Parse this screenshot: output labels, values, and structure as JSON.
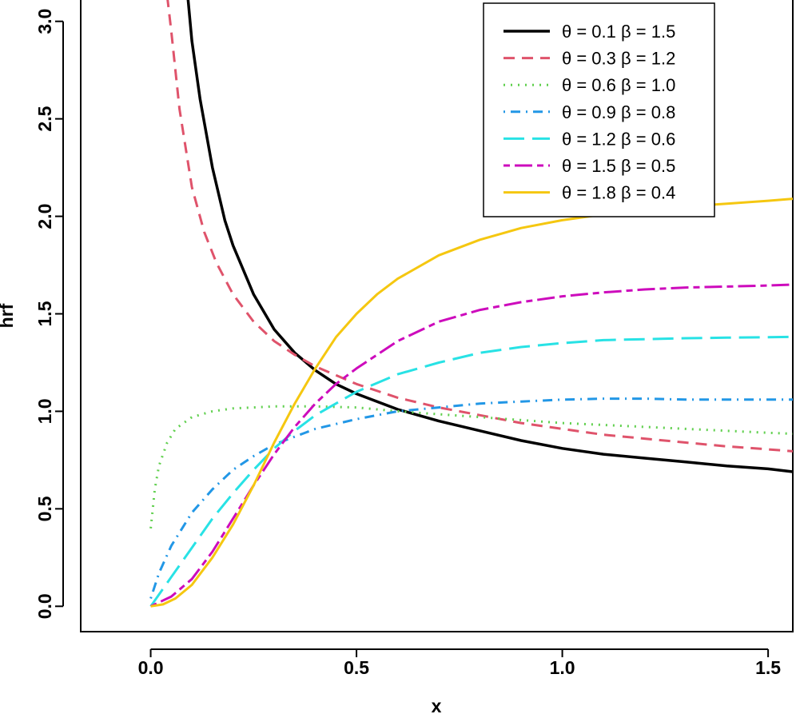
{
  "chart_data": {
    "type": "line",
    "title": "",
    "xlabel": "x",
    "ylabel": "hrf",
    "xlim": [
      -0.17,
      1.56
    ],
    "ylim": [
      -0.13,
      3.13
    ],
    "xticks": [
      0.0,
      0.5,
      1.0,
      1.5
    ],
    "yticks": [
      0.0,
      0.5,
      1.0,
      1.5,
      2.0,
      2.5,
      3.0
    ],
    "xtick_labels": [
      "0.0",
      "0.5",
      "1.0",
      "1.5"
    ],
    "ytick_labels": [
      "0.0",
      "0.5",
      "1.0",
      "1.5",
      "2.0",
      "2.5",
      "3.0"
    ],
    "legend_position": "top-right",
    "series": [
      {
        "name": "θ = 0.1  β = 1.5",
        "color": "#000000",
        "style": "solid",
        "x": [
          0.09,
          0.1,
          0.12,
          0.15,
          0.18,
          0.2,
          0.25,
          0.3,
          0.35,
          0.4,
          0.45,
          0.5,
          0.6,
          0.7,
          0.8,
          0.9,
          1.0,
          1.1,
          1.2,
          1.3,
          1.4,
          1.5,
          1.56
        ],
        "y": [
          3.13,
          2.9,
          2.6,
          2.25,
          1.98,
          1.85,
          1.6,
          1.42,
          1.3,
          1.21,
          1.14,
          1.09,
          1.01,
          0.95,
          0.9,
          0.85,
          0.81,
          0.78,
          0.76,
          0.74,
          0.72,
          0.705,
          0.69
        ]
      },
      {
        "name": "θ = 0.3  β = 1.2",
        "color": "#DF536B",
        "style": "dashed",
        "x": [
          0.04,
          0.05,
          0.07,
          0.1,
          0.13,
          0.16,
          0.2,
          0.25,
          0.3,
          0.35,
          0.4,
          0.5,
          0.6,
          0.7,
          0.8,
          0.9,
          1.0,
          1.1,
          1.2,
          1.3,
          1.4,
          1.5,
          1.56
        ],
        "y": [
          3.13,
          2.95,
          2.55,
          2.15,
          1.92,
          1.76,
          1.6,
          1.46,
          1.36,
          1.29,
          1.23,
          1.14,
          1.07,
          1.02,
          0.98,
          0.94,
          0.91,
          0.88,
          0.86,
          0.84,
          0.82,
          0.805,
          0.795
        ]
      },
      {
        "name": "θ = 0.6  β = 1.0",
        "color": "#61D04F",
        "style": "dotted",
        "x": [
          0.0,
          0.01,
          0.02,
          0.04,
          0.06,
          0.1,
          0.15,
          0.2,
          0.25,
          0.3,
          0.4,
          0.5,
          0.6,
          0.7,
          0.8,
          0.9,
          1.0,
          1.1,
          1.2,
          1.3,
          1.4,
          1.5,
          1.56
        ],
        "y": [
          0.4,
          0.6,
          0.72,
          0.84,
          0.91,
          0.97,
          1.0,
          1.015,
          1.02,
          1.025,
          1.025,
          1.02,
          1.0,
          0.985,
          0.97,
          0.955,
          0.94,
          0.93,
          0.92,
          0.91,
          0.9,
          0.89,
          0.885
        ]
      },
      {
        "name": "θ = 0.9  β = 0.8",
        "color": "#2297E6",
        "style": "dotdash",
        "x": [
          0.0,
          0.02,
          0.05,
          0.1,
          0.15,
          0.2,
          0.25,
          0.3,
          0.4,
          0.5,
          0.6,
          0.7,
          0.8,
          0.9,
          1.0,
          1.1,
          1.2,
          1.3,
          1.4,
          1.5,
          1.56
        ],
        "y": [
          0.04,
          0.17,
          0.31,
          0.48,
          0.6,
          0.7,
          0.77,
          0.83,
          0.91,
          0.96,
          1.0,
          1.02,
          1.04,
          1.05,
          1.06,
          1.065,
          1.065,
          1.06,
          1.06,
          1.06,
          1.06
        ]
      },
      {
        "name": "θ = 1.2  β = 0.6",
        "color": "#28E2E5",
        "style": "longdash",
        "x": [
          0.0,
          0.05,
          0.1,
          0.15,
          0.2,
          0.25,
          0.3,
          0.35,
          0.4,
          0.5,
          0.6,
          0.7,
          0.8,
          0.9,
          1.0,
          1.1,
          1.2,
          1.3,
          1.4,
          1.5,
          1.56
        ],
        "y": [
          0.0,
          0.15,
          0.3,
          0.45,
          0.58,
          0.7,
          0.81,
          0.9,
          0.98,
          1.1,
          1.19,
          1.25,
          1.3,
          1.33,
          1.35,
          1.365,
          1.37,
          1.375,
          1.378,
          1.38,
          1.382
        ]
      },
      {
        "name": "θ = 1.5  β = 0.5",
        "color": "#CD0BBC",
        "style": "twodash",
        "x": [
          0.0,
          0.05,
          0.1,
          0.15,
          0.2,
          0.25,
          0.3,
          0.35,
          0.4,
          0.45,
          0.5,
          0.6,
          0.7,
          0.8,
          0.9,
          1.0,
          1.1,
          1.2,
          1.3,
          1.4,
          1.5,
          1.56
        ],
        "y": [
          0.0,
          0.05,
          0.14,
          0.28,
          0.45,
          0.62,
          0.78,
          0.92,
          1.04,
          1.14,
          1.22,
          1.36,
          1.46,
          1.52,
          1.56,
          1.59,
          1.61,
          1.625,
          1.635,
          1.64,
          1.645,
          1.65
        ]
      },
      {
        "name": "θ = 1.8  β = 0.4",
        "color": "#F5C710",
        "style": "solid",
        "x": [
          0.0,
          0.03,
          0.06,
          0.1,
          0.15,
          0.2,
          0.25,
          0.3,
          0.35,
          0.4,
          0.45,
          0.5,
          0.55,
          0.6,
          0.7,
          0.8,
          0.9,
          1.0,
          1.1,
          1.2,
          1.3,
          1.4,
          1.5,
          1.56
        ],
        "y": [
          0.0,
          0.01,
          0.04,
          0.11,
          0.25,
          0.42,
          0.62,
          0.84,
          1.04,
          1.22,
          1.38,
          1.5,
          1.6,
          1.68,
          1.8,
          1.88,
          1.94,
          1.98,
          2.01,
          2.03,
          2.05,
          2.065,
          2.08,
          2.09
        ]
      }
    ]
  }
}
